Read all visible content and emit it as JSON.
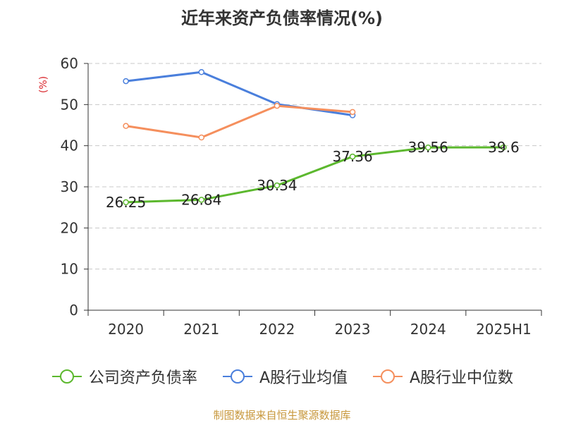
{
  "title": "近年来资产负债率情况(%)",
  "unit_label": "(%)",
  "source": "制图数据来自恒生聚源数据库",
  "chart_data": {
    "type": "line",
    "categories": [
      "2020",
      "2021",
      "2022",
      "2023",
      "2024",
      "2025H1"
    ],
    "ylim": [
      0,
      60
    ],
    "yticks": [
      "0",
      "10",
      "20",
      "30",
      "40",
      "50",
      "60"
    ],
    "grid": true,
    "legend_position": "bottom",
    "series": [
      {
        "name": "公司资产负债率",
        "color": "#5cb82e",
        "values": [
          26.25,
          26.84,
          30.34,
          37.36,
          39.56,
          39.6
        ],
        "labels": [
          "26.25",
          "26.84",
          "30.34",
          "37.36",
          "39.56",
          "39.6"
        ]
      },
      {
        "name": "A股行业均值",
        "color": "#4a7fdc",
        "values": [
          55.7,
          57.9,
          50.1,
          47.4,
          null,
          null
        ]
      },
      {
        "name": "A股行业中位数",
        "color": "#f58f5d",
        "values": [
          44.8,
          42.0,
          49.7,
          48.2,
          null,
          null
        ]
      }
    ]
  }
}
